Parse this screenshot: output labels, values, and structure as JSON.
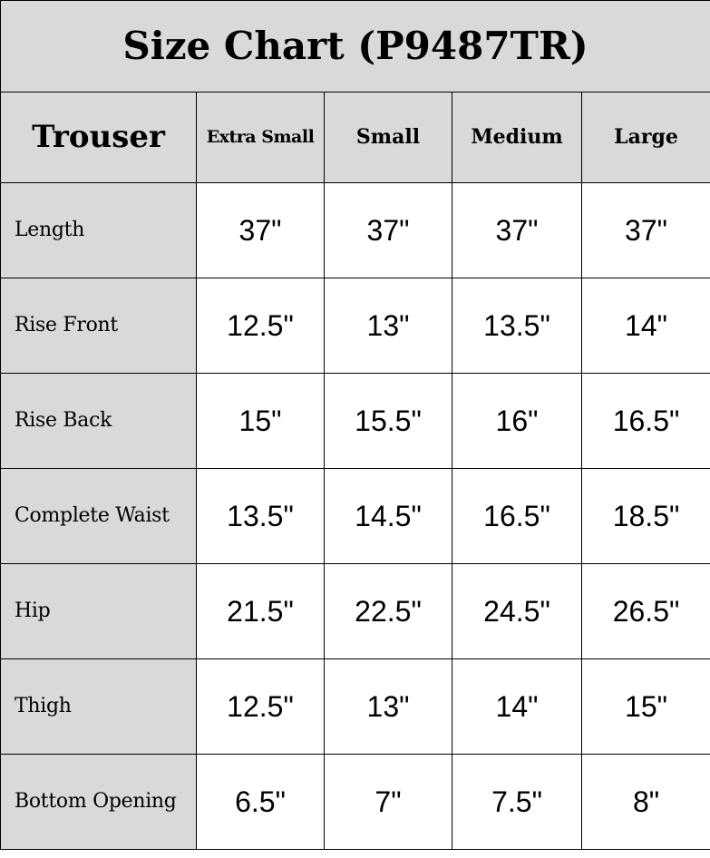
{
  "title": "Size Chart (P9487TR)",
  "header": {
    "first": "Trouser",
    "sizes": [
      "Extra Small",
      "Small",
      "Medium",
      "Large"
    ]
  },
  "rows": [
    {
      "label": "Length",
      "values": [
        "37\"",
        "37\"",
        "37\"",
        "37\""
      ]
    },
    {
      "label": "Rise Front",
      "values": [
        "12.5\"",
        "13\"",
        "13.5\"",
        "14\""
      ]
    },
    {
      "label": "Rise Back",
      "values": [
        "15\"",
        "15.5\"",
        "16\"",
        "16.5\""
      ]
    },
    {
      "label": "Complete Waist",
      "values": [
        "13.5\"",
        "14.5\"",
        "16.5\"",
        "18.5\""
      ]
    },
    {
      "label": "Hip",
      "values": [
        "21.5\"",
        "22.5\"",
        "24.5\"",
        "26.5\""
      ]
    },
    {
      "label": "Thigh",
      "values": [
        "12.5\"",
        "13\"",
        "14\"",
        "15\""
      ]
    },
    {
      "label": "Bottom Opening",
      "values": [
        "6.5\"",
        "7\"",
        "7.5\"",
        "8\""
      ]
    }
  ],
  "colors": {
    "header_bg": "#d9d9d9",
    "cell_bg": "#ffffff",
    "border": "#000000"
  }
}
